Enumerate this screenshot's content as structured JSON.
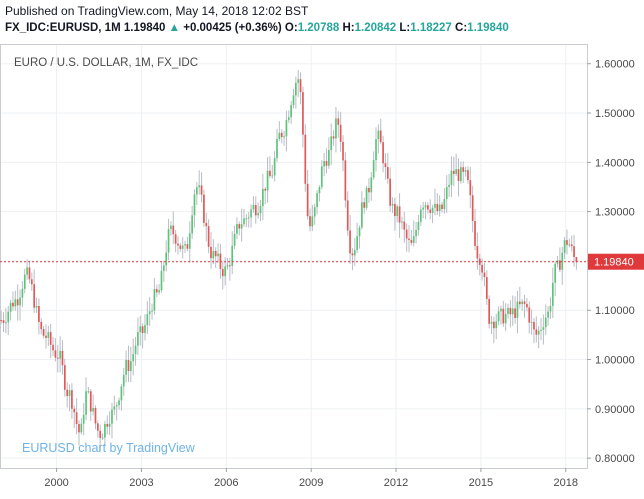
{
  "header": {
    "published": "Published on TradingView.com, May 14, 2018 12:02 BST",
    "symbol": "FX_IDC:EURUSD, 1M",
    "last": "1.19840",
    "arrow": "▲",
    "change": "+0.00425 (+0.36%)",
    "open_label": "O:",
    "open": "1.20788",
    "high_label": "H:",
    "high": "1.20842",
    "low_label": "L:",
    "low": "1.18227",
    "close_label": "C:",
    "close": "1.19840"
  },
  "chart_data": {
    "type": "candlestick",
    "title": "EURO / U.S. DOLLAR, 1M, FX_IDC",
    "watermark": "EURUSD chart by TradingView",
    "last_price_label": "1.19840",
    "last_price": 1.1984,
    "ylim": [
      0.78,
      1.64
    ],
    "xlim": [
      1998.0,
      2018.75
    ],
    "y_ticks": [
      "0.80000",
      "0.90000",
      "1.00000",
      "1.10000",
      "1.20000",
      "1.30000",
      "1.40000",
      "1.50000",
      "1.60000"
    ],
    "x_ticks": [
      "2000",
      "2003",
      "2006",
      "2009",
      "2012",
      "2015",
      "2018"
    ],
    "colors": {
      "up": "#26a69a",
      "up_fill": "#5cc47a",
      "down": "#e05858",
      "wick": "#b8bcc4",
      "last_line": "#e0393b",
      "watermark": "#6fb3e8"
    },
    "monthly_close_approx": [
      {
        "year": 1998.0,
        "close": 1.08
      },
      {
        "year": 1998.5,
        "close": 1.12
      },
      {
        "year": 1998.9,
        "close": 1.17
      },
      {
        "year": 1999.5,
        "close": 1.05
      },
      {
        "year": 2000.0,
        "close": 1.01
      },
      {
        "year": 2000.4,
        "close": 0.93
      },
      {
        "year": 2000.8,
        "close": 0.85
      },
      {
        "year": 2001.0,
        "close": 0.93
      },
      {
        "year": 2001.5,
        "close": 0.85
      },
      {
        "year": 2001.9,
        "close": 0.89
      },
      {
        "year": 2002.5,
        "close": 0.99
      },
      {
        "year": 2002.9,
        "close": 1.05
      },
      {
        "year": 2003.5,
        "close": 1.13
      },
      {
        "year": 2004.0,
        "close": 1.26
      },
      {
        "year": 2004.5,
        "close": 1.22
      },
      {
        "year": 2004.9,
        "close": 1.35
      },
      {
        "year": 2005.5,
        "close": 1.21
      },
      {
        "year": 2005.9,
        "close": 1.18
      },
      {
        "year": 2006.5,
        "close": 1.28
      },
      {
        "year": 2007.0,
        "close": 1.31
      },
      {
        "year": 2007.5,
        "close": 1.37
      },
      {
        "year": 2007.9,
        "close": 1.46
      },
      {
        "year": 2008.5,
        "close": 1.57
      },
      {
        "year": 2008.9,
        "close": 1.27
      },
      {
        "year": 2009.5,
        "close": 1.41
      },
      {
        "year": 2009.9,
        "close": 1.48
      },
      {
        "year": 2010.4,
        "close": 1.22
      },
      {
        "year": 2010.9,
        "close": 1.33
      },
      {
        "year": 2011.3,
        "close": 1.45
      },
      {
        "year": 2011.9,
        "close": 1.3
      },
      {
        "year": 2012.5,
        "close": 1.23
      },
      {
        "year": 2012.9,
        "close": 1.32
      },
      {
        "year": 2013.5,
        "close": 1.3
      },
      {
        "year": 2014.0,
        "close": 1.38
      },
      {
        "year": 2014.4,
        "close": 1.37
      },
      {
        "year": 2014.9,
        "close": 1.21
      },
      {
        "year": 2015.3,
        "close": 1.08
      },
      {
        "year": 2015.9,
        "close": 1.09
      },
      {
        "year": 2016.5,
        "close": 1.11
      },
      {
        "year": 2016.9,
        "close": 1.05
      },
      {
        "year": 2017.3,
        "close": 1.09
      },
      {
        "year": 2017.6,
        "close": 1.18
      },
      {
        "year": 2018.0,
        "close": 1.24
      },
      {
        "year": 2018.35,
        "close": 1.198
      }
    ]
  }
}
